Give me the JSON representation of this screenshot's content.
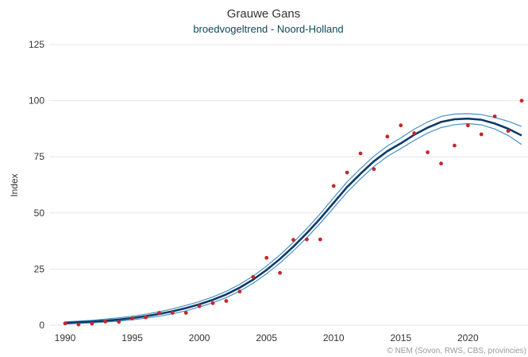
{
  "colors": {
    "trend": "#0d3b66",
    "band": "#4a90c8",
    "points": "#c62828",
    "subtitle": "#0d4a55",
    "grid": "#e6e6e6"
  },
  "chart_data": {
    "type": "line",
    "title": "Grauwe Gans",
    "subtitle": "broedvogeltrend - Noord-Holland",
    "xlabel": "",
    "ylabel": "Index",
    "xlim": [
      1990,
      2024
    ],
    "ylim": [
      0,
      125
    ],
    "xticks": [
      1990,
      1995,
      2000,
      2005,
      2010,
      2015,
      2020
    ],
    "yticks": [
      0,
      25,
      50,
      75,
      100,
      125
    ],
    "grid": true,
    "credit": "© NEM (Sovon, RWS, CBS, provincies)",
    "years": [
      1990,
      1991,
      1992,
      1993,
      1994,
      1995,
      1996,
      1997,
      1998,
      1999,
      2000,
      2001,
      2002,
      2003,
      2004,
      2005,
      2006,
      2007,
      2008,
      2009,
      2010,
      2011,
      2012,
      2013,
      2014,
      2015,
      2016,
      2017,
      2018,
      2019,
      2020,
      2021,
      2022,
      2023,
      2024
    ],
    "trend": [
      1,
      1.3,
      1.6,
      2,
      2.5,
      3.2,
      4,
      5,
      6.2,
      7.6,
      9.3,
      11.3,
      13.7,
      16.7,
      20.3,
      24.6,
      29.5,
      35,
      41,
      47.5,
      54.5,
      61.5,
      67.5,
      73,
      77.5,
      81,
      84.8,
      88,
      90.5,
      91.7,
      92,
      91.5,
      89.8,
      87.5,
      84.5
    ],
    "upper": [
      1.5,
      1.8,
      2.2,
      2.7,
      3.3,
      4,
      4.9,
      6,
      7.3,
      8.8,
      10.5,
      12.6,
      15.1,
      18.2,
      21.9,
      26.3,
      31.3,
      36.9,
      43,
      49.6,
      56.8,
      63.8,
      69.8,
      75.3,
      79.8,
      83.4,
      87.3,
      90.5,
      93,
      94,
      94.2,
      93.8,
      92.5,
      90.8,
      88.5
    ],
    "lower": [
      0.5,
      0.8,
      1,
      1.4,
      1.8,
      2.4,
      3.1,
      4,
      5.1,
      6.4,
      8.1,
      10,
      12.3,
      15.2,
      18.7,
      22.9,
      27.7,
      33.1,
      39,
      45.4,
      52.3,
      59.2,
      65.2,
      70.7,
      75.2,
      78.7,
      82.3,
      85.6,
      88,
      89.3,
      89.8,
      89.2,
      87.4,
      84.5,
      80.5
    ],
    "observed": {
      "x": [
        1990,
        1991,
        1992,
        1993,
        1994,
        1995,
        1996,
        1997,
        1998,
        1999,
        2000,
        2001,
        2002,
        2003,
        2004,
        2005,
        2006,
        2007,
        2008,
        2009,
        2010,
        2011,
        2012,
        2013,
        2014,
        2015,
        2016,
        2017,
        2018,
        2019,
        2020,
        2021,
        2022,
        2023,
        2024
      ],
      "y": [
        0.8,
        0.3,
        0.7,
        1.6,
        1.5,
        3,
        3.5,
        5.5,
        5.5,
        5.5,
        8.5,
        9.8,
        10.8,
        15,
        21.5,
        30,
        23.3,
        38,
        38.2,
        38.2,
        62,
        68,
        76.5,
        69.5,
        84,
        89,
        85.5,
        77,
        72,
        80,
        89,
        85,
        93,
        86.5,
        100
      ]
    }
  }
}
